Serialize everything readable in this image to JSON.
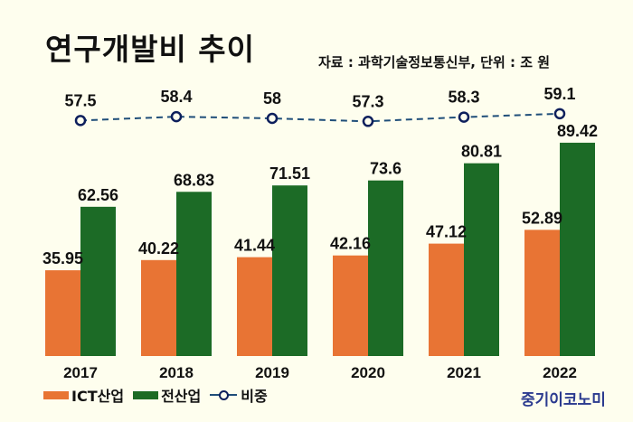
{
  "header": {
    "title": "연구개발비 추이",
    "source": "자료 : 과학기술정보통신부, 단위 : 조 원"
  },
  "brand": "중기이코노미",
  "colors": {
    "ict": "#e87434",
    "total": "#1c6b26",
    "ratio_line": "#1f4e79",
    "ratio_marker": "#0d1f5c",
    "background": "#fefeee"
  },
  "chart_data": {
    "type": "bar",
    "title": "연구개발비 추이",
    "categories": [
      "2017",
      "2018",
      "2019",
      "2020",
      "2021",
      "2022"
    ],
    "series": [
      {
        "name": "ICT산업",
        "type": "bar",
        "values": [
          35.95,
          40.22,
          41.44,
          42.16,
          47.12,
          52.89
        ],
        "labels": [
          "35.95",
          "40.22",
          "41.44",
          "42.16",
          "47.12",
          "52.89"
        ]
      },
      {
        "name": "전산업",
        "type": "bar",
        "values": [
          62.56,
          68.83,
          71.51,
          73.6,
          80.81,
          89.42
        ],
        "labels": [
          "62.56",
          "68.83",
          "71.51",
          "73.6",
          "80.81",
          "89.42"
        ]
      },
      {
        "name": "비중",
        "type": "line",
        "style": "dashed",
        "values": [
          57.5,
          58.4,
          58,
          57.3,
          58.3,
          59.1
        ],
        "labels": [
          "57.5",
          "58.4",
          "58",
          "57.3",
          "58.3",
          "59.1"
        ]
      }
    ],
    "xlabel": "",
    "ylabel": "",
    "ylim": [
      0,
      100
    ],
    "grid": false,
    "legend": "bottom-left",
    "unit": "조 원"
  }
}
